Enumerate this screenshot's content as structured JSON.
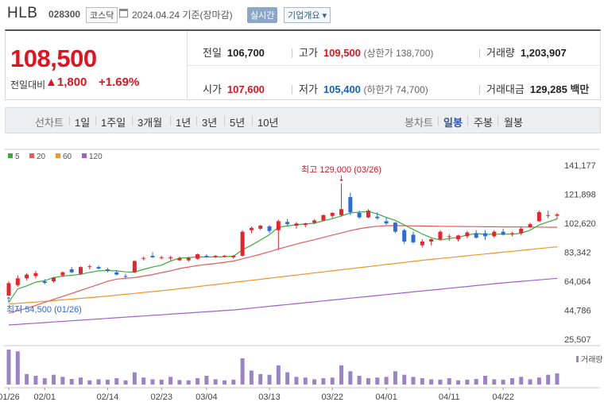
{
  "header": {
    "name": "HLB",
    "code": "028300",
    "market": "코스닥",
    "date": "2024.04.24",
    "basis": "기준(장마감)",
    "realtime_label": "실시간",
    "company_info_label": "기업개요 ▾"
  },
  "quote": {
    "price": "108,500",
    "change_label": "전일대비",
    "change": "▲1,800",
    "change_pct": "+1.69%",
    "prev_close_label": "전일",
    "prev_close": "106,700",
    "high_label": "고가",
    "high": "109,500",
    "upper_limit": "(상한가 138,700)",
    "volume_label": "거래량",
    "volume": "1,203,907",
    "open_label": "시가",
    "open": "107,600",
    "low_label": "저가",
    "low": "105,400",
    "lower_limit": "(하한가 74,700)",
    "amount_label": "거래대금",
    "amount": "129,285",
    "amount_unit": "백만"
  },
  "tabs": {
    "line_chart_label": "선차트",
    "periods": [
      "1일",
      "1주일",
      "3개월",
      "1년",
      "3년",
      "5년",
      "10년"
    ],
    "candle_label": "봉차트",
    "candle_periods": [
      "일봉",
      "주봉",
      "월봉"
    ],
    "selected_candle": "일봉"
  },
  "colors": {
    "up": "#e8232b",
    "down": "#2e6ad8",
    "ma5": "#3aad3a",
    "ma20": "#e85a5a",
    "ma60": "#f0962a",
    "ma120": "#a060c8",
    "volume": "#9b83c7"
  },
  "chart_data": {
    "type": "candlestick",
    "legend": [
      {
        "name": "5",
        "color": "#3aad3a"
      },
      {
        "name": "20",
        "color": "#e85a5a"
      },
      {
        "name": "60",
        "color": "#f0962a"
      },
      {
        "name": "120",
        "color": "#a060c8"
      }
    ],
    "y_ticks": [
      "141,177",
      "121,898",
      "102,620",
      "83,342",
      "64,064",
      "44,786",
      "25,507"
    ],
    "ylim": [
      25507,
      141177
    ],
    "x_ticks": [
      {
        "label": "01/26",
        "index": 0
      },
      {
        "label": "02/01",
        "index": 4
      },
      {
        "label": "02/14",
        "index": 11
      },
      {
        "label": "02/23",
        "index": 17
      },
      {
        "label": "03/04",
        "index": 22
      },
      {
        "label": "03/13",
        "index": 29
      },
      {
        "label": "03/22",
        "index": 36
      },
      {
        "label": "04/01",
        "index": 42
      },
      {
        "label": "04/11",
        "index": 49
      },
      {
        "label": "04/22",
        "index": 55
      }
    ],
    "max_annotation": {
      "label": "최고 129,000 (03/26)",
      "value": 129000,
      "index": 37
    },
    "min_annotation": {
      "label": "최저 54,500 (01/26)",
      "value": 54500,
      "index": 0
    },
    "volume_label": "거래량",
    "candles": [
      [
        54500,
        64000,
        54500,
        62800
      ],
      [
        61500,
        68000,
        60500,
        66000
      ],
      [
        66000,
        69500,
        64500,
        68500
      ],
      [
        67500,
        71000,
        66000,
        69500
      ],
      [
        64000,
        65500,
        62000,
        63000
      ],
      [
        64000,
        67000,
        63000,
        66500
      ],
      [
        68000,
        70500,
        67000,
        70000
      ],
      [
        72000,
        73500,
        69500,
        70000
      ],
      [
        69000,
        74000,
        68500,
        73500
      ],
      [
        73500,
        75000,
        72000,
        74000
      ],
      [
        73500,
        74500,
        72000,
        72500
      ],
      [
        72000,
        73000,
        70000,
        71000
      ],
      [
        70000,
        71500,
        68000,
        68500
      ],
      [
        67500,
        69000,
        66000,
        67000
      ],
      [
        70000,
        78000,
        69500,
        77500
      ],
      [
        79000,
        80500,
        78000,
        79500
      ],
      [
        81000,
        83500,
        79500,
        80000
      ],
      [
        79500,
        81000,
        78500,
        80000
      ],
      [
        79500,
        81000,
        78000,
        80000
      ],
      [
        78000,
        80500,
        77500,
        79500
      ],
      [
        78000,
        80500,
        77000,
        79500
      ],
      [
        79000,
        82500,
        78500,
        82000
      ],
      [
        81000,
        82000,
        79500,
        80500
      ],
      [
        80500,
        81500,
        79500,
        81000
      ],
      [
        80500,
        81500,
        80000,
        81000
      ],
      [
        80000,
        81500,
        79000,
        81000
      ],
      [
        81000,
        98000,
        80500,
        97000
      ],
      [
        98000,
        100500,
        96000,
        99500
      ],
      [
        99000,
        101500,
        98000,
        101000
      ],
      [
        100500,
        101500,
        96000,
        97500
      ],
      [
        98000,
        105000,
        85000,
        104000
      ],
      [
        103500,
        105500,
        101000,
        102000
      ],
      [
        101000,
        103500,
        99000,
        102500
      ],
      [
        101500,
        103000,
        100000,
        102500
      ],
      [
        103000,
        105500,
        102000,
        104500
      ],
      [
        104500,
        108500,
        104000,
        108000
      ],
      [
        107500,
        110000,
        106000,
        109500
      ],
      [
        108000,
        129000,
        107000,
        112000
      ],
      [
        120000,
        123000,
        108000,
        110000
      ],
      [
        109500,
        111000,
        105500,
        106500
      ],
      [
        106500,
        112000,
        106000,
        111000
      ],
      [
        107000,
        110000,
        105000,
        106000
      ],
      [
        104000,
        106500,
        101500,
        102500
      ],
      [
        103000,
        103500,
        96000,
        97000
      ],
      [
        98000,
        99000,
        89000,
        90500
      ],
      [
        95000,
        97000,
        89000,
        90000
      ],
      [
        88000,
        92000,
        86500,
        90500
      ],
      [
        90500,
        92500,
        88000,
        92000
      ],
      [
        92000,
        98000,
        91500,
        97000
      ],
      [
        93500,
        95500,
        91000,
        94000
      ],
      [
        92000,
        95000,
        90500,
        94500
      ],
      [
        94000,
        97500,
        92500,
        96500
      ],
      [
        96000,
        98000,
        92500,
        93000
      ],
      [
        96000,
        98000,
        91500,
        94000
      ],
      [
        94000,
        98000,
        93000,
        97000
      ],
      [
        97000,
        99000,
        94500,
        95000
      ],
      [
        96000,
        97000,
        94000,
        96000
      ],
      [
        96000,
        100000,
        94500,
        99000
      ],
      [
        100000,
        103000,
        99500,
        102000
      ],
      [
        104000,
        111000,
        103500,
        110000
      ],
      [
        107500,
        111000,
        106000,
        108000
      ],
      [
        107600,
        109500,
        105400,
        108500
      ]
    ],
    "ma5": [
      50000,
      59000,
      61000,
      63500,
      64500,
      66500,
      67500,
      68000,
      68700,
      70000,
      71000,
      71200,
      71000,
      70300,
      70200,
      72000,
      73500,
      74800,
      77500,
      79500,
      79700,
      80300,
      80200,
      80200,
      80400,
      80700,
      85000,
      88000,
      91500,
      95000,
      100000,
      100800,
      101600,
      102200,
      102600,
      104300,
      105700,
      107500,
      109500,
      110000,
      110500,
      108800,
      106500,
      104600,
      101500,
      98500,
      95500,
      93000,
      91500,
      92500,
      93300,
      94800,
      95800,
      95200,
      95400,
      95400,
      95400,
      96000,
      98000,
      101500,
      103500,
      105500
    ],
    "ma20": [
      43000,
      44500,
      46000,
      48000,
      50000,
      52000,
      54000,
      56000,
      58000,
      60000,
      62000,
      64000,
      65500,
      66000,
      66500,
      67500,
      68500,
      69800,
      71000,
      72500,
      73500,
      74500,
      75200,
      75900,
      76700,
      77500,
      79000,
      80500,
      82000,
      83700,
      85500,
      87200,
      88800,
      90300,
      91700,
      93200,
      94800,
      96200,
      97700,
      99000,
      100000,
      100600,
      101000,
      101100,
      101000,
      100900,
      100800,
      100700,
      100600,
      100500,
      100500,
      100400,
      100400,
      100300,
      100300,
      100200,
      100200,
      100200,
      100100,
      100100,
      100000,
      100000
    ],
    "ma60": [
      49000,
      49400,
      49800,
      50200,
      50700,
      51200,
      51700,
      52200,
      52700,
      53200,
      53700,
      54200,
      54800,
      55400,
      56000,
      56600,
      57200,
      57800,
      58400,
      59100,
      59800,
      60500,
      61200,
      61900,
      62600,
      63300,
      64000,
      64700,
      65400,
      66100,
      66800,
      67500,
      68200,
      68900,
      69600,
      70300,
      71000,
      71700,
      72400,
      73100,
      73800,
      74500,
      75200,
      75900,
      76600,
      77300,
      78000,
      78600,
      79200,
      79800,
      80400,
      81000,
      81600,
      82200,
      82800,
      83400,
      84000,
      84600,
      85200,
      85800,
      86400,
      87000
    ],
    "ma120": [
      35000,
      35400,
      35800,
      36200,
      36600,
      37000,
      37400,
      37800,
      38200,
      38600,
      39000,
      39400,
      39800,
      40200,
      40600,
      41000,
      41400,
      41800,
      42200,
      42600,
      43000,
      43400,
      43800,
      44200,
      44600,
      45000,
      45600,
      46200,
      46800,
      47400,
      48000,
      48600,
      49200,
      49800,
      50400,
      51000,
      51600,
      52200,
      52800,
      53400,
      54000,
      54600,
      55200,
      55800,
      56400,
      57000,
      57600,
      58200,
      58800,
      59400,
      60000,
      60600,
      61200,
      61800,
      62400,
      63000,
      63500,
      64000,
      64500,
      65000,
      65500,
      66000
    ],
    "volumes": [
      100,
      95,
      30,
      25,
      18,
      28,
      22,
      16,
      20,
      12,
      15,
      14,
      18,
      12,
      35,
      20,
      15,
      14,
      22,
      13,
      12,
      18,
      25,
      15,
      12,
      14,
      75,
      40,
      30,
      28,
      55,
      35,
      22,
      20,
      15,
      18,
      20,
      55,
      38,
      25,
      18,
      20,
      22,
      38,
      28,
      22,
      18,
      15,
      14,
      18,
      12,
      14,
      16,
      25,
      15,
      14,
      18,
      22,
      15,
      20,
      28,
      32
    ]
  }
}
